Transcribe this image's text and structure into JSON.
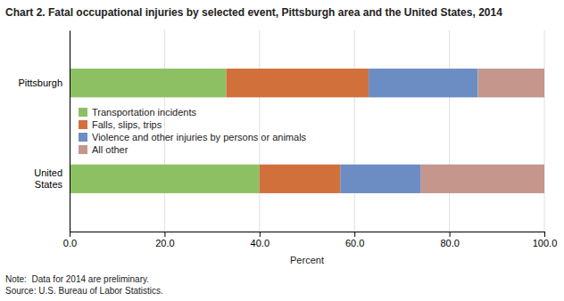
{
  "chart_data": {
    "type": "bar",
    "orientation": "horizontal",
    "stacked": true,
    "title": "Chart 2. Fatal occupational injuries by selected event, Pittsburgh area and the United States, 2014",
    "categories": [
      "Pittsburgh",
      "United\nStates"
    ],
    "series": [
      {
        "name": "Transportation incidents",
        "values": [
          33.0,
          40.0
        ],
        "color": "#8DC063"
      },
      {
        "name": "Falls, slips, trips",
        "values": [
          30.0,
          17.0
        ],
        "color": "#D2703C"
      },
      {
        "name": "Violence and other injuries by persons or animals",
        "values": [
          23.0,
          17.0
        ],
        "color": "#6B8DC4"
      },
      {
        "name": "All other",
        "values": [
          14.0,
          26.0
        ],
        "color": "#C4968C"
      }
    ],
    "xlabel": "Percent",
    "xlim": [
      0,
      100
    ],
    "xticks": [
      {
        "value": 0,
        "label": "0.0"
      },
      {
        "value": 20,
        "label": "20.0"
      },
      {
        "value": 40,
        "label": "40.0"
      },
      {
        "value": 60,
        "label": "60.0"
      },
      {
        "value": 80,
        "label": "80.0"
      },
      {
        "value": 100,
        "label": "100.0"
      }
    ],
    "grid": true,
    "legend": "center",
    "annotations": [
      "Note:  Data for 2014 are preliminary.",
      "Source: U.S. Bureau of Labor Statistics."
    ]
  }
}
